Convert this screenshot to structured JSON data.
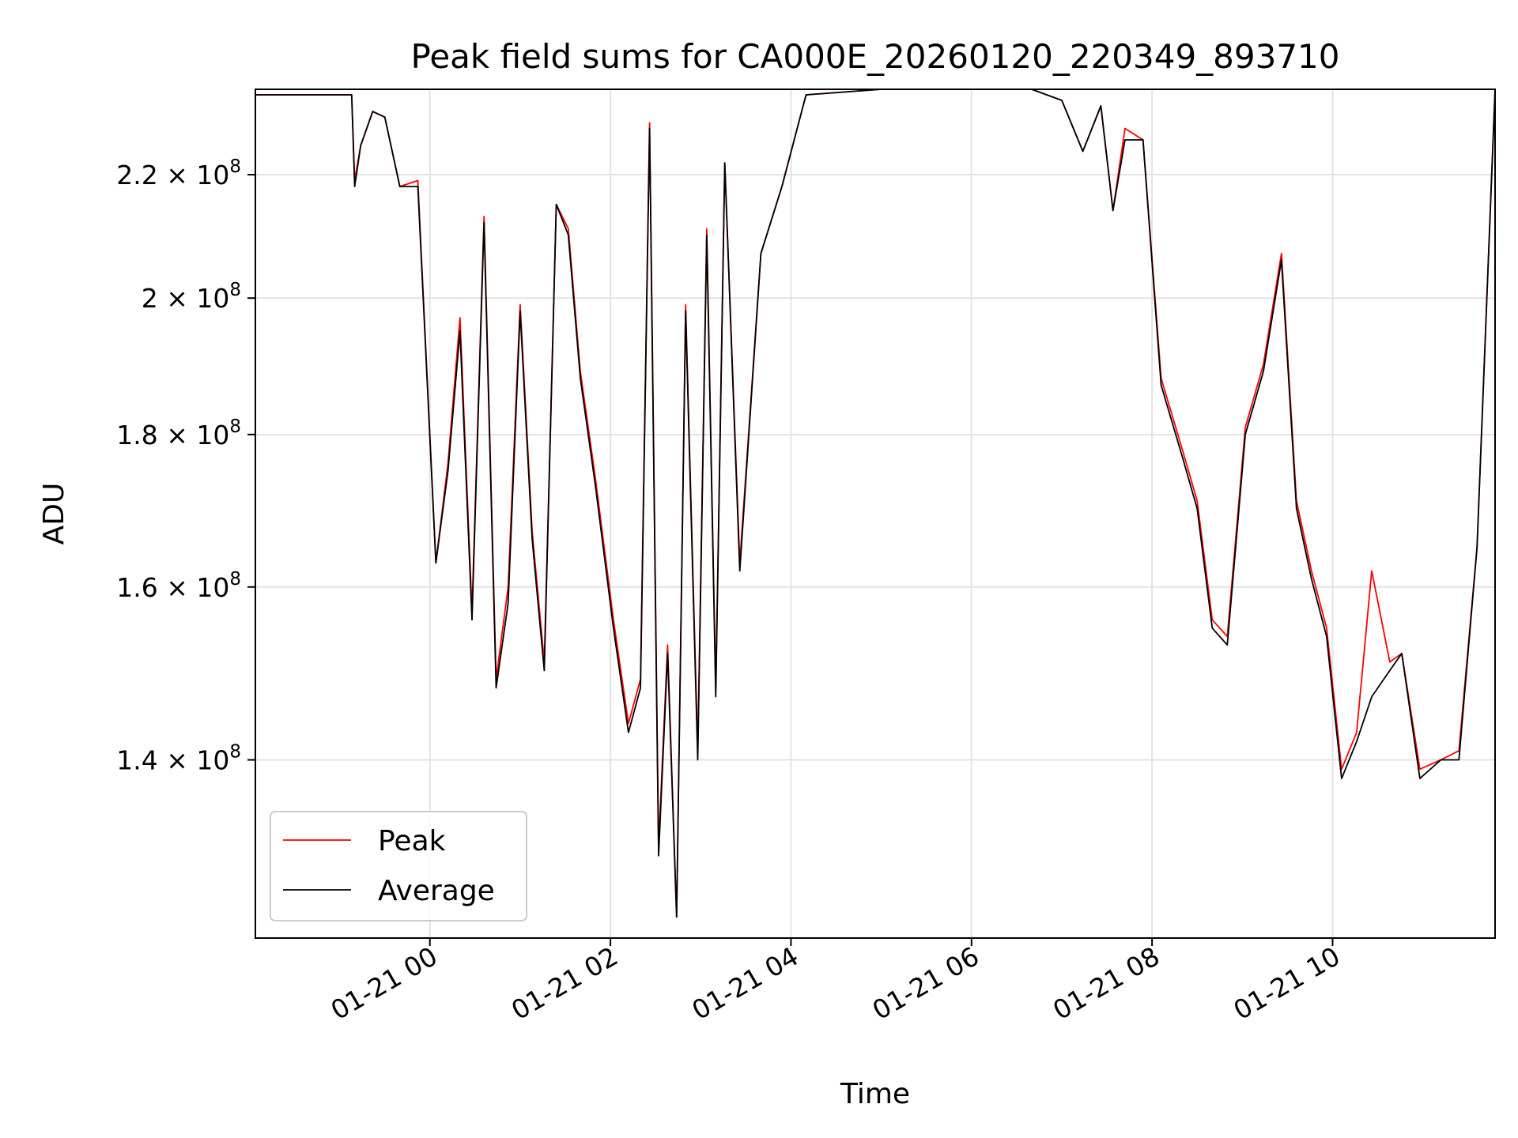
{
  "chart_data": {
    "type": "line",
    "title": "Peak field sums for CA000E_20260120_220349_893710",
    "xlabel": "Time",
    "ylabel": "ADU",
    "yscale": "log",
    "xlim": [
      "2026-01-20 22:04",
      "2026-01-21 11:48"
    ],
    "ylim": [
      122000000.0,
      235000000.0
    ],
    "grid": true,
    "legend_position": "lower-left",
    "x_ticks": [
      "01-21 00",
      "01-21 02",
      "01-21 04",
      "01-21 06",
      "01-21 08",
      "01-21 10"
    ],
    "x_tick_times": [
      "2026-01-21 00:00",
      "2026-01-21 02:00",
      "2026-01-21 04:00",
      "2026-01-21 06:00",
      "2026-01-21 08:00",
      "2026-01-21 10:00"
    ],
    "y_ticks": [
      {
        "value": 220000000.0,
        "mantissa": "2.2",
        "exponent": "8"
      },
      {
        "value": 200000000.0,
        "mantissa": "2",
        "exponent": "8"
      },
      {
        "value": 180000000.0,
        "mantissa": "1.8",
        "exponent": "8"
      },
      {
        "value": 160000000.0,
        "mantissa": "1.6",
        "exponent": "8"
      },
      {
        "value": 140000000.0,
        "mantissa": "1.4",
        "exponent": "8"
      }
    ],
    "series": [
      {
        "name": "Peak",
        "color": "#ff0000"
      },
      {
        "name": "Average",
        "color": "#000000"
      }
    ],
    "x": [
      "2026-01-20 22:04",
      "2026-01-20 23:08",
      "2026-01-20 23:10",
      "2026-01-20 23:14",
      "2026-01-20 23:22",
      "2026-01-20 23:30",
      "2026-01-20 23:40",
      "2026-01-20 23:52",
      "2026-01-21 00:04",
      "2026-01-21 00:12",
      "2026-01-21 00:20",
      "2026-01-21 00:28",
      "2026-01-21 00:36",
      "2026-01-21 00:44",
      "2026-01-21 00:52",
      "2026-01-21 01:00",
      "2026-01-21 01:08",
      "2026-01-21 01:16",
      "2026-01-21 01:24",
      "2026-01-21 01:32",
      "2026-01-21 01:40",
      "2026-01-21 01:50",
      "2026-01-21 02:02",
      "2026-01-21 02:12",
      "2026-01-21 02:20",
      "2026-01-21 02:26",
      "2026-01-21 02:32",
      "2026-01-21 02:38",
      "2026-01-21 02:44",
      "2026-01-21 02:50",
      "2026-01-21 02:58",
      "2026-01-21 03:04",
      "2026-01-21 03:10",
      "2026-01-21 03:16",
      "2026-01-21 03:26",
      "2026-01-21 03:40",
      "2026-01-21 03:54",
      "2026-01-21 04:10",
      "2026-01-21 05:00",
      "2026-01-21 06:00",
      "2026-01-21 06:40",
      "2026-01-21 07:00",
      "2026-01-21 07:14",
      "2026-01-21 07:26",
      "2026-01-21 07:34",
      "2026-01-21 07:42",
      "2026-01-21 07:54",
      "2026-01-21 08:06",
      "2026-01-21 08:20",
      "2026-01-21 08:30",
      "2026-01-21 08:40",
      "2026-01-21 08:50",
      "2026-01-21 09:02",
      "2026-01-21 09:14",
      "2026-01-21 09:26",
      "2026-01-21 09:36",
      "2026-01-21 09:46",
      "2026-01-21 09:56",
      "2026-01-21 10:06",
      "2026-01-21 10:16",
      "2026-01-21 10:26",
      "2026-01-21 10:38",
      "2026-01-21 10:46",
      "2026-01-21 10:58",
      "2026-01-21 11:12",
      "2026-01-21 11:24",
      "2026-01-21 11:36",
      "2026-01-21 11:48"
    ],
    "values_average": [
      234000000.0,
      234000000.0,
      218000000.0,
      225000000.0,
      231000000.0,
      230000000.0,
      218000000.0,
      218000000.0,
      163000000.0,
      175000000.0,
      195000000.0,
      156000000.0,
      212000000.0,
      148000000.0,
      158000000.0,
      198000000.0,
      166000000.0,
      150000000.0,
      215000000.0,
      210000000.0,
      188000000.0,
      173000000.0,
      155000000.0,
      143000000.0,
      148000000.0,
      228000000.0,
      130000000.0,
      152000000.0,
      124000000.0,
      198000000.0,
      140000000.0,
      210000000.0,
      147000000.0,
      222000000.0,
      162000000.0,
      207000000.0,
      218000000.0,
      234000000.0,
      235000000.0,
      235000000.0,
      235000000.0,
      233000000.0,
      224000000.0,
      232000000.0,
      214000000.0,
      226000000.0,
      226000000.0,
      187000000.0,
      177000000.0,
      170000000.0,
      155000000.0,
      153000000.0,
      180000000.0,
      189000000.0,
      206000000.0,
      170000000.0,
      161000000.0,
      154000000.0,
      138000000.0,
      142000000.0,
      147000000.0,
      150000000.0,
      152000000.0,
      138000000.0,
      140000000.0,
      140000000.0,
      165000000.0,
      235000000.0
    ],
    "values_peak": [
      234000000.0,
      234000000.0,
      219000000.0,
      225000000.0,
      231000000.0,
      230000000.0,
      218000000.0,
      219000000.0,
      163000000.0,
      176000000.0,
      197000000.0,
      157000000.0,
      213000000.0,
      149000000.0,
      160000000.0,
      199000000.0,
      167000000.0,
      151000000.0,
      215000000.0,
      211000000.0,
      189000000.0,
      174000000.0,
      156000000.0,
      144000000.0,
      149000000.0,
      229000000.0,
      131000000.0,
      153000000.0,
      124000000.0,
      199000000.0,
      141000000.0,
      211000000.0,
      148000000.0,
      222000000.0,
      163000000.0,
      207000000.0,
      218000000.0,
      234000000.0,
      235000000.0,
      235000000.0,
      235000000.0,
      233000000.0,
      224000000.0,
      232000000.0,
      214000000.0,
      228000000.0,
      226000000.0,
      188000000.0,
      178000000.0,
      171000000.0,
      156000000.0,
      154000000.0,
      181000000.0,
      190000000.0,
      207000000.0,
      171000000.0,
      162000000.0,
      155000000.0,
      139000000.0,
      143000000.0,
      162000000.0,
      151000000.0,
      152000000.0,
      139000000.0,
      140000000.0,
      141000000.0,
      165000000.0,
      235000000.0
    ]
  }
}
